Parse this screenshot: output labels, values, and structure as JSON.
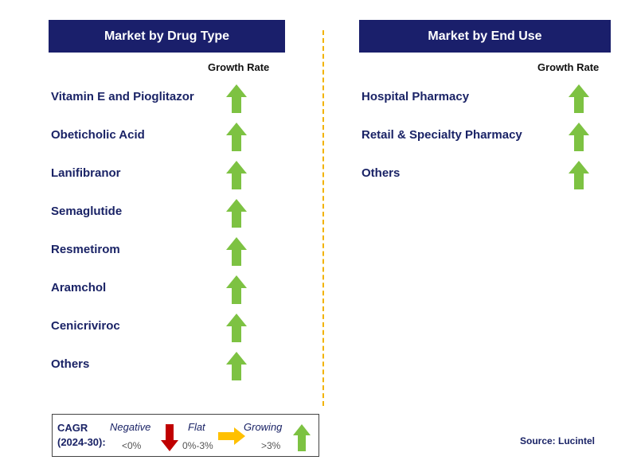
{
  "left_panel": {
    "title": "Market by Drug Type",
    "growth_rate_label": "Growth Rate",
    "items": [
      {
        "label": "Vitamin E and Pioglitazor",
        "trend": "growing"
      },
      {
        "label": "Obeticholic Acid",
        "trend": "growing"
      },
      {
        "label": "Lanifibranor",
        "trend": "growing"
      },
      {
        "label": "Semaglutide",
        "trend": "growing"
      },
      {
        "label": "Resmetirom",
        "trend": "growing"
      },
      {
        "label": "Aramchol",
        "trend": "growing"
      },
      {
        "label": "Cenicriviroc",
        "trend": "growing"
      },
      {
        "label": "Others",
        "trend": "growing"
      }
    ]
  },
  "right_panel": {
    "title": "Market by End Use",
    "growth_rate_label": "Growth Rate",
    "items": [
      {
        "label": "Hospital Pharmacy",
        "trend": "growing"
      },
      {
        "label": "Retail & Specialty Pharmacy",
        "trend": "growing"
      },
      {
        "label": "Others",
        "trend": "growing"
      }
    ]
  },
  "legend": {
    "cagr_line1": "CAGR",
    "cagr_line2": "(2024-30):",
    "negative": {
      "title": "Negative",
      "range": "<0%",
      "icon": "red-down-arrow-icon"
    },
    "flat": {
      "title": "Flat",
      "range": "0%-3%",
      "icon": "yellow-right-arrow-icon"
    },
    "growing": {
      "title": "Growing",
      "range": ">3%",
      "icon": "green-up-arrow-icon"
    }
  },
  "source": "Source: Lucintel",
  "colors": {
    "header_bg": "#1a1f6b",
    "label_text": "#1a2366",
    "growing": "#7dc242",
    "negative": "#c00000",
    "flat": "#ffc000",
    "divider": "#f2b300"
  }
}
